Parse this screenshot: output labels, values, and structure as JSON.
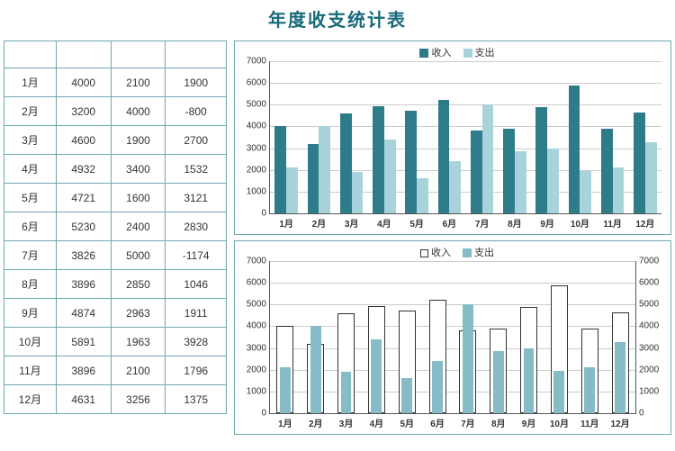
{
  "title": "年度收支统计表",
  "table": {
    "columns": [
      "",
      "",
      "",
      ""
    ],
    "rows": [
      [
        "1月",
        4000,
        2100,
        1900
      ],
      [
        "2月",
        3200,
        4000,
        -800
      ],
      [
        "3月",
        4600,
        1900,
        2700
      ],
      [
        "4月",
        4932,
        3400,
        1532
      ],
      [
        "5月",
        4721,
        1600,
        3121
      ],
      [
        "6月",
        5230,
        2400,
        2830
      ],
      [
        "7月",
        3826,
        5000,
        -1174
      ],
      [
        "8月",
        3896,
        2850,
        1046
      ],
      [
        "9月",
        4874,
        2963,
        1911
      ],
      [
        "10月",
        5891,
        1963,
        3928
      ],
      [
        "11月",
        3896,
        2100,
        1796
      ],
      [
        "12月",
        4631,
        3256,
        1375
      ]
    ],
    "border_color": "#6fa8b0",
    "font_size": 12
  },
  "chart_top": {
    "type": "bar",
    "categories": [
      "1月",
      "2月",
      "3月",
      "4月",
      "5月",
      "6月",
      "7月",
      "8月",
      "9月",
      "10月",
      "11月",
      "12月"
    ],
    "series": [
      {
        "name": "收入",
        "color": "#2e7b8a",
        "values": [
          4000,
          3200,
          4600,
          4932,
          4721,
          5230,
          3826,
          3896,
          4874,
          5891,
          3896,
          4631
        ]
      },
      {
        "name": "支出",
        "color": "#a9d3db",
        "values": [
          2100,
          4000,
          1900,
          3400,
          1600,
          2400,
          5000,
          2850,
          2963,
          1963,
          2100,
          3256
        ]
      }
    ],
    "ylim": [
      0,
      7000
    ],
    "ytick_step": 1000,
    "grid_color": "#cccccc",
    "axis_color": "#555555",
    "label_fontsize": 10,
    "bar_group_width": 0.7
  },
  "chart_bottom": {
    "type": "bar",
    "dual_axis": true,
    "categories": [
      "1月",
      "2月",
      "3月",
      "4月",
      "5月",
      "6月",
      "7月",
      "8月",
      "9月",
      "10月",
      "11月",
      "12月"
    ],
    "series": [
      {
        "name": "收入",
        "style": "outline",
        "fill": "#ffffff",
        "stroke": "#333333",
        "values": [
          4000,
          3200,
          4600,
          4932,
          4721,
          5230,
          3826,
          3896,
          4874,
          5891,
          3896,
          4631
        ]
      },
      {
        "name": "支出",
        "style": "fill",
        "color": "#86bcc6",
        "values": [
          2100,
          4000,
          1900,
          3400,
          1600,
          2400,
          5000,
          2850,
          2963,
          1963,
          2100,
          3256
        ]
      }
    ],
    "ylim": [
      0,
      7000
    ],
    "ytick_step": 1000,
    "grid_color": "#cccccc",
    "axis_color": "#555555",
    "label_fontsize": 10,
    "bar_group_width": 0.7
  },
  "colors": {
    "title": "#196a7a",
    "background": "#ffffff"
  }
}
